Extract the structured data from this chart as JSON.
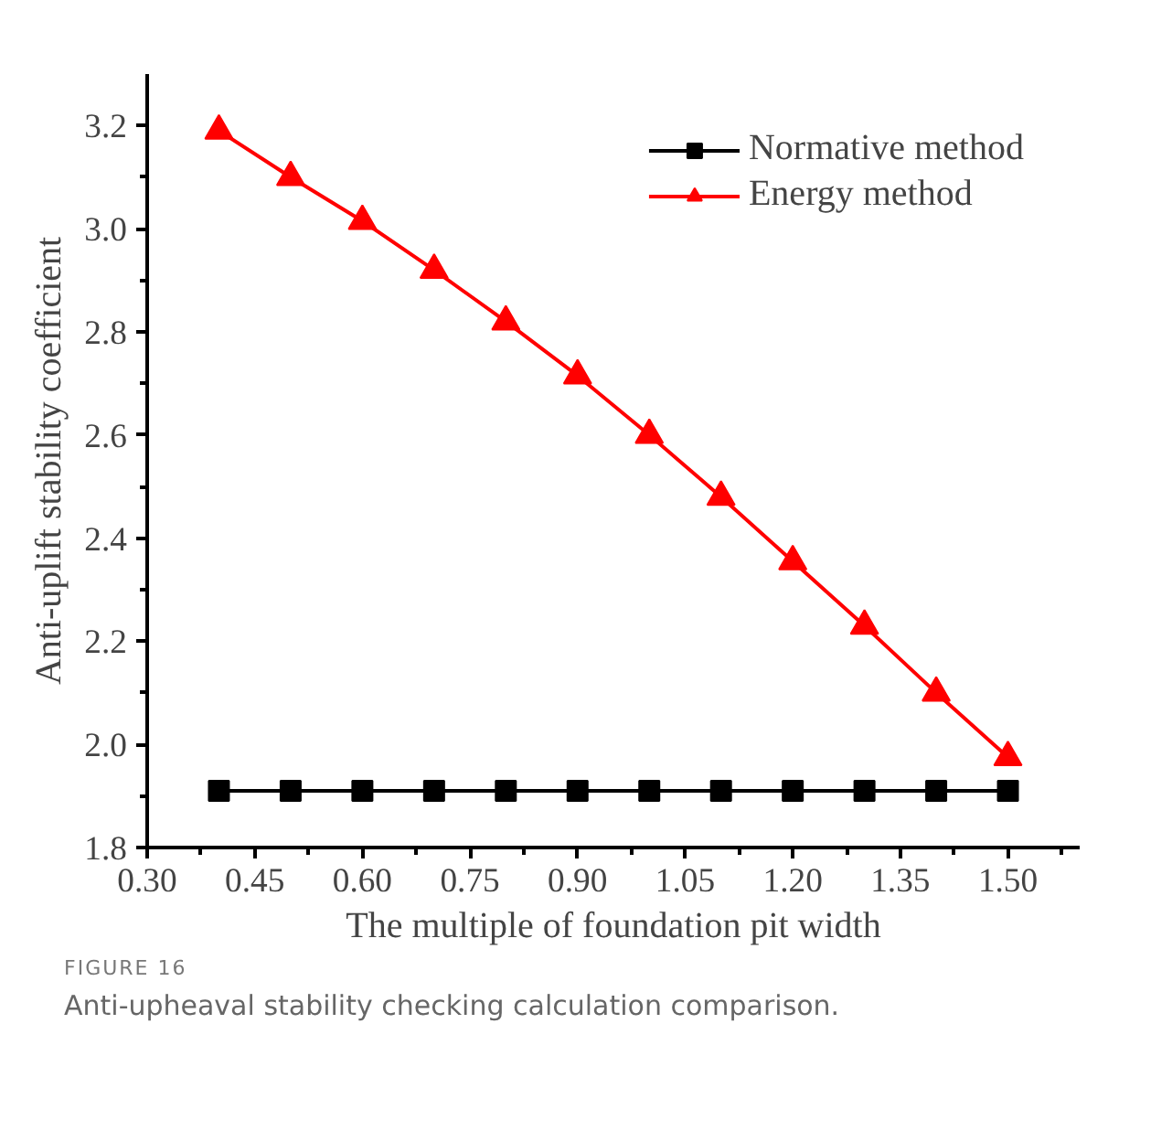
{
  "chart_data": {
    "type": "line",
    "xlabel": "The multiple of foundation pit width",
    "ylabel": "Anti-uplift stability coefficient",
    "x": [
      0.4,
      0.5,
      0.6,
      0.7,
      0.8,
      0.9,
      1.0,
      1.1,
      1.2,
      1.3,
      1.4,
      1.5
    ],
    "series": [
      {
        "name": "Normative method",
        "color": "#000000",
        "marker": "square",
        "values": [
          1.91,
          1.91,
          1.91,
          1.91,
          1.91,
          1.91,
          1.91,
          1.91,
          1.91,
          1.91,
          1.91,
          1.91
        ]
      },
      {
        "name": "Energy method",
        "color": "#ff0000",
        "marker": "triangle",
        "values": [
          3.19,
          3.1,
          3.015,
          2.92,
          2.82,
          2.715,
          2.6,
          2.48,
          2.355,
          2.23,
          2.1,
          1.975
        ]
      }
    ],
    "xlim": [
      0.3,
      1.6
    ],
    "ylim": [
      1.8,
      3.3
    ],
    "xticks": [
      {
        "value": 0.3,
        "label": "0.30"
      },
      0.45,
      {
        "value": 0.6,
        "label": "0.60"
      },
      0.75,
      {
        "value": 0.9,
        "label": "0.90"
      },
      1.05,
      {
        "value": 1.2,
        "label": "1.20"
      },
      1.35,
      {
        "value": 1.5,
        "label": "1.50"
      }
    ],
    "yticks": [
      1.8,
      {
        "value": 2,
        "label": "2.0"
      },
      2.2,
      2.4,
      2.6,
      2.8,
      {
        "value": 3,
        "label": "3.0"
      },
      3.2
    ],
    "grid": false,
    "legend": "top right",
    "line_style": "solid",
    "annotations": [
      "FIGURE 16",
      "Anti-upheaval stability checking calculation comparison."
    ]
  }
}
